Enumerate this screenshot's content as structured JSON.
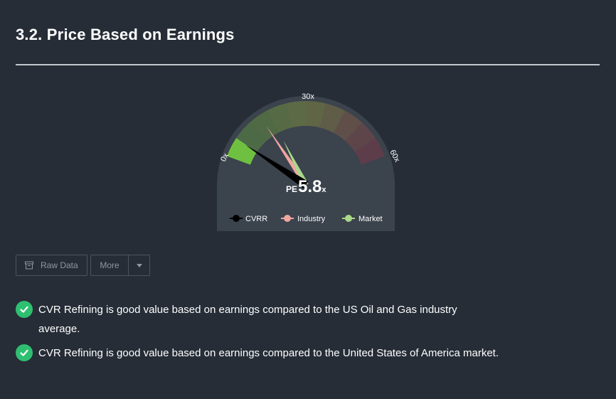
{
  "section": {
    "title": "3.2. Price Based on Earnings"
  },
  "gauge": {
    "tick_min": "0x",
    "tick_mid": "30x",
    "tick_max": "60x",
    "pe_prefix": "PE",
    "pe_value": "5.8",
    "pe_suffix": "x",
    "scale_min": 0,
    "scale_max": 60,
    "needles": {
      "company": 5.8,
      "industry": 15.5,
      "market": 18.5
    },
    "colors": {
      "company": "#000000",
      "industry": "#f0a6a0",
      "market": "#a9d88a",
      "highlight": "#6fc041",
      "dial": "#3b434d"
    }
  },
  "legend": {
    "company": "CVRR",
    "industry": "Industry",
    "market": "Market"
  },
  "toolbar": {
    "raw_data_label": "Raw Data",
    "more_label": "More"
  },
  "checks": [
    {
      "text": "CVR Refining is good value based on earnings compared to the US Oil and Gas industry average."
    },
    {
      "text": "CVR Refining is good value based on earnings compared to the United States of America market."
    }
  ]
}
